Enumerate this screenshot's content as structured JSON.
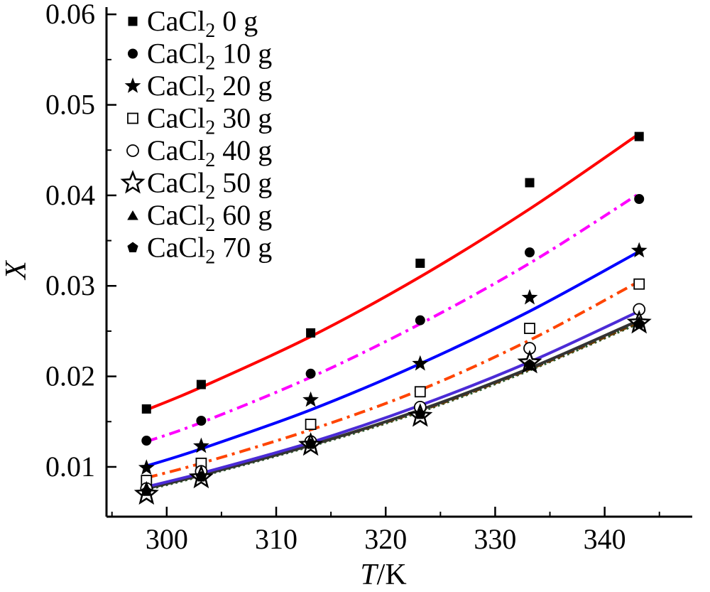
{
  "chart_data": {
    "type": "scatter",
    "x_axis": {
      "label_italic": "T",
      "label_rest": "/K",
      "range": [
        294.5,
        348
      ],
      "ticks": [
        300,
        310,
        320,
        330,
        340
      ],
      "tick_labels": [
        "300",
        "310",
        "320",
        "330",
        "340"
      ]
    },
    "y_axis": {
      "label": "X",
      "range": [
        0.0045,
        0.0608
      ],
      "ticks": [
        0.01,
        0.02,
        0.03,
        0.04,
        0.05,
        0.06
      ],
      "tick_labels": [
        "0.01",
        "0.02",
        "0.03",
        "0.04",
        "0.05",
        "0.06"
      ]
    },
    "grid": false,
    "legend_position": "top-left",
    "x": [
      298.15,
      303.15,
      313.15,
      323.15,
      333.15,
      343.15
    ],
    "series": [
      {
        "name_prefix": "CaCl",
        "name_sub": "2",
        "name_suffix": " 0 g",
        "marker": "filled-square",
        "line_color": "#ff0000",
        "line_style": "solid",
        "values": [
          0.0164,
          0.0191,
          0.0248,
          0.0325,
          0.0414,
          0.0465
        ],
        "fit": [
          0.0163,
          0.0188,
          0.0244,
          0.031,
          0.0385,
          0.0468
        ]
      },
      {
        "name_prefix": "CaCl",
        "name_sub": "2",
        "name_suffix": " 10 g",
        "marker": "filled-circle",
        "line_color": "#ff00ff",
        "line_style": "dash-dot",
        "values": [
          0.0129,
          0.0151,
          0.0203,
          0.0262,
          0.0337,
          0.0396
        ],
        "fit": [
          0.0128,
          0.0149,
          0.0199,
          0.0258,
          0.0325,
          0.0402
        ]
      },
      {
        "name_prefix": "CaCl",
        "name_sub": "2",
        "name_suffix": " 20 g",
        "marker": "filled-star",
        "line_color": "#0000ff",
        "line_style": "solid",
        "values": [
          0.0099,
          0.0123,
          0.0174,
          0.0214,
          0.0287,
          0.0339
        ],
        "fit": [
          0.0101,
          0.012,
          0.0163,
          0.0214,
          0.0272,
          0.0338
        ]
      },
      {
        "name_prefix": "CaCl",
        "name_sub": "2",
        "name_suffix": " 30 g",
        "marker": "open-square",
        "line_color": "#ff4400",
        "line_style": "dash-dot",
        "values": [
          0.0085,
          0.0104,
          0.0147,
          0.0183,
          0.0253,
          0.0302
        ],
        "fit": [
          0.0088,
          0.0104,
          0.0141,
          0.0185,
          0.024,
          0.0305
        ]
      },
      {
        "name_prefix": "CaCl",
        "name_sub": "2",
        "name_suffix": " 40 g",
        "marker": "open-circle",
        "line_color": "#4b2bd6",
        "line_style": "solid",
        "values": [
          0.0076,
          0.0095,
          0.0128,
          0.0166,
          0.0231,
          0.0274
        ],
        "fit": [
          0.0078,
          0.0093,
          0.0127,
          0.0168,
          0.0216,
          0.0272
        ]
      },
      {
        "name_prefix": "CaCl",
        "name_sub": "2",
        "name_suffix": " 50 g",
        "marker": "open-star",
        "line_color": "#333333",
        "line_style": "solid",
        "values": [
          0.007,
          0.0088,
          0.0124,
          0.0156,
          0.0215,
          0.0259
        ],
        "fit": [
          0.0076,
          0.0091,
          0.0124,
          0.0163,
          0.0209,
          0.0262
        ]
      },
      {
        "name_prefix": "CaCl",
        "name_sub": "2",
        "name_suffix": " 60 g",
        "marker": "filled-triangle",
        "line_color": "#6b3a00",
        "line_style": "dash",
        "values": [
          0.0074,
          0.009,
          0.0126,
          0.0159,
          0.0212,
          0.0261
        ],
        "fit": [
          0.0076,
          0.0091,
          0.0124,
          0.0162,
          0.0208,
          0.026
        ]
      },
      {
        "name_prefix": "CaCl",
        "name_sub": "2",
        "name_suffix": " 70 g",
        "marker": "filled-pentagon",
        "line_color": "#2e5e2e",
        "line_style": "dot",
        "values": [
          0.0073,
          0.0089,
          0.0125,
          0.0158,
          0.0213,
          0.0258
        ],
        "fit": [
          0.0075,
          0.009,
          0.0123,
          0.0161,
          0.0207,
          0.0259
        ]
      }
    ]
  }
}
